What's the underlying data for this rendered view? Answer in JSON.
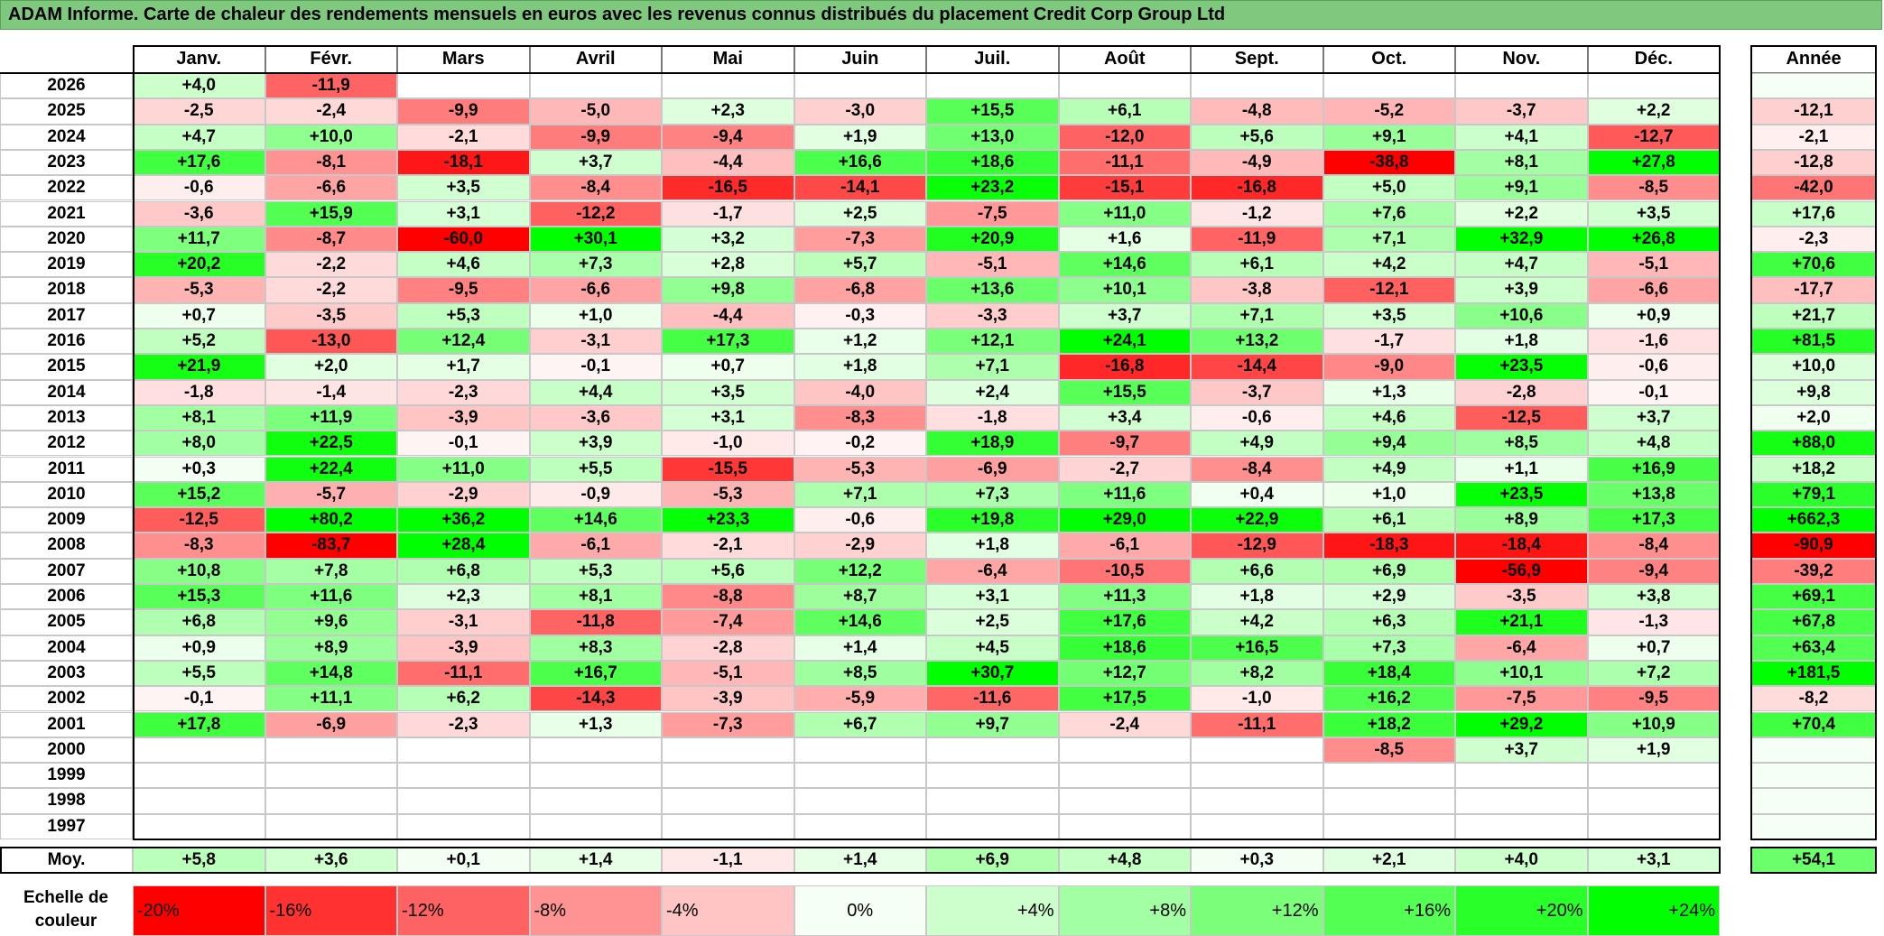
{
  "title": "ADAM Informe. Carte de chaleur des rendements mensuels en euros avec les revenus connus distribués du placement Credit Corp Group Ltd",
  "chart_data": {
    "type": "heatmap",
    "title": "ADAM Informe. Carte de chaleur des rendements mensuels en euros avec les revenus connus distribués du placement Credit Corp Group Ltd",
    "months": [
      "Janv.",
      "Févr.",
      "Mars",
      "Avril",
      "Mai",
      "Juin",
      "Juil.",
      "Août",
      "Sept.",
      "Oct.",
      "Nov.",
      "Déc."
    ],
    "year_header": "Année",
    "rows": [
      {
        "year": "2026",
        "values": [
          "+4,0",
          "-11,9",
          "",
          "",
          "",
          "",
          "",
          "",
          "",
          "",
          "",
          ""
        ],
        "annual": ""
      },
      {
        "year": "2025",
        "values": [
          "-2,5",
          "-2,4",
          "-9,9",
          "-5,0",
          "+2,3",
          "-3,0",
          "+15,5",
          "+6,1",
          "-4,8",
          "-5,2",
          "-3,7",
          "+2,2"
        ],
        "annual": "-12,1"
      },
      {
        "year": "2024",
        "values": [
          "+4,7",
          "+10,0",
          "-2,1",
          "-9,9",
          "-9,4",
          "+1,9",
          "+13,0",
          "-12,0",
          "+5,6",
          "+9,1",
          "+4,1",
          "-12,7"
        ],
        "annual": "-2,1"
      },
      {
        "year": "2023",
        "values": [
          "+17,6",
          "-8,1",
          "-18,1",
          "+3,7",
          "-4,4",
          "+16,6",
          "+18,6",
          "-11,1",
          "-4,9",
          "-38,8",
          "+8,1",
          "+27,8"
        ],
        "annual": "-12,8"
      },
      {
        "year": "2022",
        "values": [
          "-0,6",
          "-6,6",
          "+3,5",
          "-8,4",
          "-16,5",
          "-14,1",
          "+23,2",
          "-15,1",
          "-16,8",
          "+5,0",
          "+9,1",
          "-8,5"
        ],
        "annual": "-42,0"
      },
      {
        "year": "2021",
        "values": [
          "-3,6",
          "+15,9",
          "+3,1",
          "-12,2",
          "-1,7",
          "+2,5",
          "-7,5",
          "+11,0",
          "-1,2",
          "+7,6",
          "+2,2",
          "+3,5"
        ],
        "annual": "+17,6"
      },
      {
        "year": "2020",
        "values": [
          "+11,7",
          "-8,7",
          "-60,0",
          "+30,1",
          "+3,2",
          "-7,3",
          "+20,9",
          "+1,6",
          "-11,9",
          "+7,1",
          "+32,9",
          "+26,8"
        ],
        "annual": "-2,3"
      },
      {
        "year": "2019",
        "values": [
          "+20,2",
          "-2,2",
          "+4,6",
          "+7,3",
          "+2,8",
          "+5,7",
          "-5,1",
          "+14,6",
          "+6,1",
          "+4,2",
          "+4,7",
          "-5,1"
        ],
        "annual": "+70,6"
      },
      {
        "year": "2018",
        "values": [
          "-5,3",
          "-2,2",
          "-9,5",
          "-6,6",
          "+9,8",
          "-6,8",
          "+13,6",
          "+10,1",
          "-3,8",
          "-12,1",
          "+3,9",
          "-6,6"
        ],
        "annual": "-17,7"
      },
      {
        "year": "2017",
        "values": [
          "+0,7",
          "-3,5",
          "+5,3",
          "+1,0",
          "-4,4",
          "-0,3",
          "-3,3",
          "+3,7",
          "+7,1",
          "+3,5",
          "+10,6",
          "+0,9"
        ],
        "annual": "+21,7"
      },
      {
        "year": "2016",
        "values": [
          "+5,2",
          "-13,0",
          "+12,4",
          "-3,1",
          "+17,3",
          "+1,2",
          "+12,1",
          "+24,1",
          "+13,2",
          "-1,7",
          "+1,8",
          "-1,6"
        ],
        "annual": "+81,5"
      },
      {
        "year": "2015",
        "values": [
          "+21,9",
          "+2,0",
          "+1,7",
          "-0,1",
          "+0,7",
          "+1,8",
          "+7,1",
          "-16,8",
          "-14,4",
          "-9,0",
          "+23,5",
          "-0,6"
        ],
        "annual": "+10,0"
      },
      {
        "year": "2014",
        "values": [
          "-1,8",
          "-1,4",
          "-2,3",
          "+4,4",
          "+3,5",
          "-4,0",
          "+2,4",
          "+15,5",
          "-3,7",
          "+1,3",
          "-2,8",
          "-0,1"
        ],
        "annual": "+9,8"
      },
      {
        "year": "2013",
        "values": [
          "+8,1",
          "+11,9",
          "-3,9",
          "-3,6",
          "+3,1",
          "-8,3",
          "-1,8",
          "+3,4",
          "-0,6",
          "+4,6",
          "-12,5",
          "+3,7"
        ],
        "annual": "+2,0"
      },
      {
        "year": "2012",
        "values": [
          "+8,0",
          "+22,5",
          "-0,1",
          "+3,9",
          "-1,0",
          "-0,2",
          "+18,9",
          "-9,7",
          "+4,9",
          "+9,4",
          "+8,5",
          "+4,8"
        ],
        "annual": "+88,0"
      },
      {
        "year": "2011",
        "values": [
          "+0,3",
          "+22,4",
          "+11,0",
          "+5,5",
          "-15,5",
          "-5,3",
          "-6,9",
          "-2,7",
          "-8,4",
          "+4,9",
          "+1,1",
          "+16,9"
        ],
        "annual": "+18,2"
      },
      {
        "year": "2010",
        "values": [
          "+15,2",
          "-5,7",
          "-2,9",
          "-0,9",
          "-5,3",
          "+7,1",
          "+7,3",
          "+11,6",
          "+0,4",
          "+1,0",
          "+23,5",
          "+13,8"
        ],
        "annual": "+79,1"
      },
      {
        "year": "2009",
        "values": [
          "-12,5",
          "+80,2",
          "+36,2",
          "+14,6",
          "+23,3",
          "-0,6",
          "+19,8",
          "+29,0",
          "+22,9",
          "+6,1",
          "+8,9",
          "+17,3"
        ],
        "annual": "+662,3"
      },
      {
        "year": "2008",
        "values": [
          "-8,3",
          "-83,7",
          "+28,4",
          "-6,1",
          "-2,1",
          "-2,9",
          "+1,8",
          "-6,1",
          "-12,9",
          "-18,3",
          "-18,4",
          "-8,4"
        ],
        "annual": "-90,9"
      },
      {
        "year": "2007",
        "values": [
          "+10,8",
          "+7,8",
          "+6,8",
          "+5,3",
          "+5,6",
          "+12,2",
          "-6,4",
          "-10,5",
          "+6,6",
          "+6,9",
          "-56,9",
          "-9,4"
        ],
        "annual": "-39,2"
      },
      {
        "year": "2006",
        "values": [
          "+15,3",
          "+11,6",
          "+2,3",
          "+8,1",
          "-8,8",
          "+8,7",
          "+3,1",
          "+11,3",
          "+1,8",
          "+2,9",
          "-3,5",
          "+3,8"
        ],
        "annual": "+69,1"
      },
      {
        "year": "2005",
        "values": [
          "+6,8",
          "+9,6",
          "-3,1",
          "-11,8",
          "-7,4",
          "+14,6",
          "+2,5",
          "+17,6",
          "+4,2",
          "+6,3",
          "+21,1",
          "-1,3"
        ],
        "annual": "+67,8"
      },
      {
        "year": "2004",
        "values": [
          "+0,9",
          "+8,9",
          "-3,9",
          "+8,3",
          "-2,8",
          "+1,4",
          "+4,5",
          "+18,6",
          "+16,5",
          "+7,3",
          "-6,4",
          "+0,7"
        ],
        "annual": "+63,4"
      },
      {
        "year": "2003",
        "values": [
          "+5,5",
          "+14,8",
          "-11,1",
          "+16,7",
          "-5,1",
          "+8,5",
          "+30,7",
          "+12,7",
          "+8,2",
          "+18,4",
          "+10,1",
          "+7,2"
        ],
        "annual": "+181,5"
      },
      {
        "year": "2002",
        "values": [
          "-0,1",
          "+11,1",
          "+6,2",
          "-14,3",
          "-3,9",
          "-5,9",
          "-11,6",
          "+17,5",
          "-1,0",
          "+16,2",
          "-7,5",
          "-9,5"
        ],
        "annual": "-8,2"
      },
      {
        "year": "2001",
        "values": [
          "+17,8",
          "-6,9",
          "-2,3",
          "+1,3",
          "-7,3",
          "+6,7",
          "+9,7",
          "-2,4",
          "-11,1",
          "+18,2",
          "+29,2",
          "+10,9"
        ],
        "annual": "+70,4"
      },
      {
        "year": "2000",
        "values": [
          "",
          "",
          "",
          "",
          "",
          "",
          "",
          "",
          "",
          "-8,5",
          "+3,7",
          "+1,9"
        ],
        "annual": ""
      },
      {
        "year": "1999",
        "values": [
          "",
          "",
          "",
          "",
          "",
          "",
          "",
          "",
          "",
          "",
          "",
          ""
        ],
        "annual": ""
      },
      {
        "year": "1998",
        "values": [
          "",
          "",
          "",
          "",
          "",
          "",
          "",
          "",
          "",
          "",
          "",
          ""
        ],
        "annual": ""
      },
      {
        "year": "1997",
        "values": [
          "",
          "",
          "",
          "",
          "",
          "",
          "",
          "",
          "",
          "",
          "",
          ""
        ],
        "annual": ""
      }
    ],
    "average": {
      "label": "Moy.",
      "values": [
        "+5,8",
        "+3,6",
        "+0,1",
        "+1,4",
        "-1,1",
        "+1,4",
        "+6,9",
        "+4,8",
        "+0,3",
        "+2,1",
        "+4,0",
        "+3,1"
      ],
      "annual": "+54,1"
    },
    "scale": {
      "label": "Echelle de couleur",
      "items": [
        "-20%",
        "-16%",
        "-12%",
        "-8%",
        "-4%",
        "0%",
        "+4%",
        "+8%",
        "+12%",
        "+16%",
        "+20%",
        "+24%"
      ]
    },
    "colors": {
      "negative": "#ff0000",
      "neutral": "#ffffff",
      "positive": "#00ff00"
    }
  }
}
